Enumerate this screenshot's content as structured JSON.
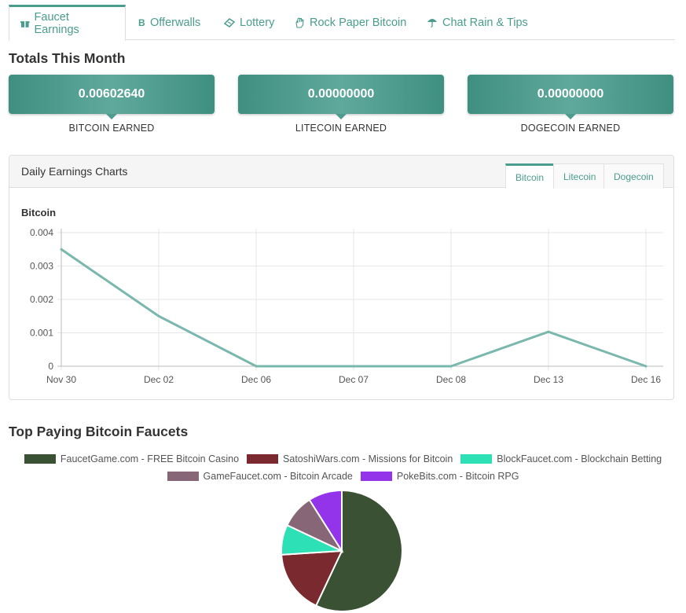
{
  "nav": {
    "tabs": [
      {
        "label": "Faucet Earnings",
        "icon": "gift-icon"
      },
      {
        "label": "Offerwalls",
        "icon": "bitcoin-icon"
      },
      {
        "label": "Lottery",
        "icon": "ticket-icon"
      },
      {
        "label": "Rock Paper Bitcoin",
        "icon": "hand-icon"
      },
      {
        "label": "Chat Rain & Tips",
        "icon": "umbrella-icon"
      }
    ],
    "active": "Faucet Earnings"
  },
  "totals": {
    "heading": "Totals This Month",
    "items": [
      {
        "value": "0.00602640",
        "label": "BITCOIN EARNED"
      },
      {
        "value": "0.00000000",
        "label": "LITECOIN EARNED"
      },
      {
        "value": "0.00000000",
        "label": "DOGECOIN EARNED"
      }
    ]
  },
  "daily_panel": {
    "title": "Daily Earnings Charts",
    "tabs": [
      "Bitcoin",
      "Litecoin",
      "Dogecoin"
    ],
    "active_tab": "Bitcoin"
  },
  "top_faucets": {
    "heading": "Top Paying Bitcoin Faucets"
  },
  "colors": {
    "accent": "#4a9d8e",
    "line": "#7ab8ad"
  },
  "chart_data": [
    {
      "type": "line",
      "title": "Bitcoin",
      "categories": [
        "Nov 30",
        "Dec 02",
        "Dec 06",
        "Dec 07",
        "Dec 08",
        "Dec 13",
        "Dec 16"
      ],
      "series": [
        {
          "values": [
            0.0035,
            0.0015,
            0,
            0,
            0,
            0.00103,
            0
          ]
        }
      ],
      "yticks": [
        "0",
        "0.001",
        "0.002",
        "0.003",
        "0.004"
      ],
      "ylim": [
        0,
        0.004
      ],
      "grid": true
    },
    {
      "type": "pie",
      "legend": "top",
      "slices": [
        {
          "name": "FaucetGame.com - FREE Bitcoin Casino",
          "value": 57,
          "color": "#3b5134"
        },
        {
          "name": "SatoshiWars.com - Missions for Bitcoin",
          "value": 17,
          "color": "#7a2a2e"
        },
        {
          "name": "BlockFaucet.com - Blockchain Betting",
          "value": 8,
          "color": "#2ee0b5"
        },
        {
          "name": "GameFaucet.com - Bitcoin Arcade",
          "value": 9,
          "color": "#866677"
        },
        {
          "name": "PokeBits.com - Bitcoin RPG",
          "value": 9,
          "color": "#9333ea"
        }
      ]
    }
  ]
}
